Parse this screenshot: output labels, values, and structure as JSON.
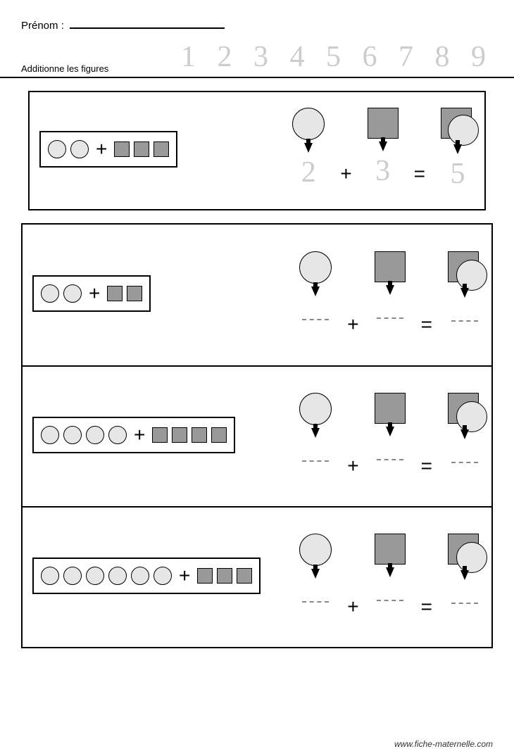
{
  "header": {
    "name_label": "Prénom :",
    "instruction": "Additionne les figures",
    "traced_numbers": "1 2 3 4 5 6 7 8 9"
  },
  "colors": {
    "circle_fill": "#e6e6e6",
    "square_fill": "#999999",
    "stroke": "#000000",
    "trace": "#cccccc",
    "background": "#ffffff",
    "dash": "#888888"
  },
  "legend": {
    "circle_size": 44,
    "square_size": 42,
    "small_circle_size": 24,
    "small_square_size": 20
  },
  "example": {
    "circles": 2,
    "squares": 3,
    "equation": {
      "a": "2",
      "op1": "+",
      "b": "3",
      "op2": "=",
      "c": "5"
    }
  },
  "problems": [
    {
      "circles": 2,
      "squares": 2
    },
    {
      "circles": 4,
      "squares": 4
    },
    {
      "circles": 6,
      "squares": 3
    }
  ],
  "footer": "www.fiche-maternelle.com"
}
